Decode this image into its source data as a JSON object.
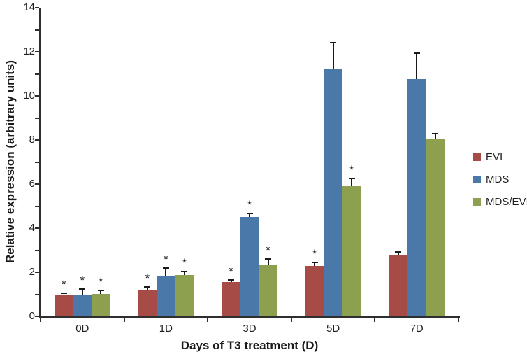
{
  "chart_data": {
    "type": "bar",
    "title": "",
    "xlabel": "Days of T3 treatment (D)",
    "ylabel": "Relative expression (arbitrary units)",
    "categories": [
      "0D",
      "1D",
      "3D",
      "5D",
      "7D"
    ],
    "series": [
      {
        "name": "EVI",
        "color": "#A64B45",
        "values": [
          1.0,
          1.21,
          1.56,
          2.28,
          2.77
        ],
        "errors": [
          0.04,
          0.12,
          0.1,
          0.15,
          0.15
        ],
        "significant": [
          true,
          true,
          true,
          true,
          false
        ]
      },
      {
        "name": "MDS",
        "color": "#4A78A8",
        "values": [
          1.0,
          1.85,
          4.5,
          11.2,
          10.75
        ],
        "errors": [
          0.25,
          0.35,
          0.17,
          1.2,
          1.2
        ],
        "significant": [
          true,
          true,
          true,
          false,
          false
        ]
      },
      {
        "name": "MDS/EVI",
        "color": "#8DA050",
        "values": [
          1.02,
          1.86,
          2.35,
          5.9,
          8.06
        ],
        "errors": [
          0.15,
          0.17,
          0.25,
          0.35,
          0.22
        ],
        "significant": [
          true,
          true,
          true,
          true,
          false
        ]
      }
    ],
    "ylim": [
      0,
      14
    ],
    "ytick_step": 2,
    "yminor_step": 1,
    "significance_marker": "*",
    "legend_position": "right",
    "grid": false,
    "error_bars": "upper",
    "axis_color": "#2e2e2e"
  }
}
